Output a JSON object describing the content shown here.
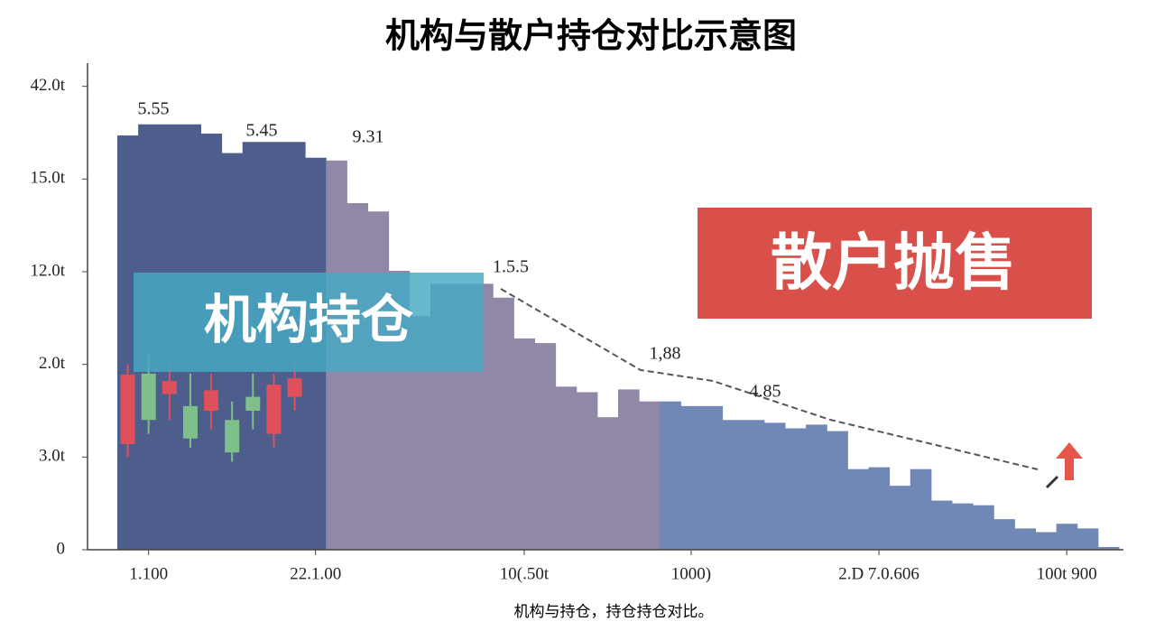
{
  "chart_data": {
    "type": "bar",
    "title": "机构与散户持仓对比示意图",
    "caption": "机构与持仓，持仓持仓对比。",
    "labels": {
      "institution": "机构持仓",
      "retail": "散户抛售"
    },
    "annotations": [
      "5.55",
      "5.45",
      "9.31",
      "1.5.5",
      "1,88",
      "4.85"
    ],
    "categories": [
      null,
      "1.100",
      null,
      null,
      null,
      null,
      null,
      null,
      null,
      "22.1.00",
      null,
      null,
      null,
      null,
      null,
      null,
      null,
      null,
      null,
      "10(.50t",
      null,
      null,
      null,
      null,
      null,
      null,
      null,
      "1000)",
      null,
      null,
      null,
      null,
      null,
      null,
      null,
      null,
      "2.D 7.0.606",
      null,
      null,
      null,
      null,
      null,
      null,
      null,
      null,
      "100t 900",
      null,
      null
    ],
    "series": [
      {
        "color": "#4d5d8c",
        "values": [
          4.47,
          4.59,
          4.59,
          4.59,
          4.49,
          4.28,
          4.4,
          4.4,
          4.4,
          4.23,
          null,
          null,
          null,
          null,
          null,
          null,
          null,
          null,
          null,
          null,
          null,
          null,
          null,
          null,
          null,
          null,
          null,
          null,
          null,
          null,
          null,
          null,
          null,
          null,
          null,
          null,
          null,
          null,
          null,
          null,
          null,
          null,
          null,
          null,
          null,
          null,
          null,
          null
        ]
      },
      {
        "color": "#9088a6",
        "values": [
          null,
          null,
          null,
          null,
          null,
          null,
          null,
          null,
          null,
          null,
          4.2,
          3.74,
          3.65,
          3.01,
          2.52,
          2.87,
          2.87,
          2.87,
          2.72,
          2.28,
          2.23,
          1.76,
          1.7,
          1.43,
          1.73,
          1.6,
          null,
          null,
          null,
          null,
          null,
          null,
          null,
          null,
          null,
          null,
          null,
          null,
          null,
          null,
          null,
          null,
          null,
          null,
          null,
          null,
          null,
          null
        ]
      },
      {
        "color": "#7088b6",
        "values": [
          null,
          null,
          null,
          null,
          null,
          null,
          null,
          null,
          null,
          null,
          null,
          null,
          null,
          null,
          null,
          null,
          null,
          null,
          null,
          null,
          null,
          null,
          null,
          null,
          null,
          null,
          1.6,
          1.55,
          1.55,
          1.4,
          1.4,
          1.37,
          1.31,
          1.35,
          1.28,
          0.87,
          0.89,
          0.69,
          0.87,
          0.53,
          0.5,
          0.48,
          0.33,
          0.23,
          0.19,
          0.28,
          0.23,
          0.03
        ]
      }
    ],
    "candles": [
      {
        "open": 1.89,
        "close": 1.14,
        "high": 2.0,
        "low": 1.0,
        "color": "#e0505a"
      },
      {
        "open": 1.4,
        "close": 1.9,
        "high": 2.1,
        "low": 1.25,
        "color": "#7fc08a"
      },
      {
        "open": 1.82,
        "close": 1.68,
        "high": 2.0,
        "low": 1.4,
        "color": "#e0505a"
      },
      {
        "open": 1.2,
        "close": 1.55,
        "high": 1.9,
        "low": 1.1,
        "color": "#7fc08a"
      },
      {
        "open": 1.72,
        "close": 1.5,
        "high": 1.9,
        "low": 1.3,
        "color": "#e0505a"
      },
      {
        "open": 1.05,
        "close": 1.4,
        "high": 1.6,
        "low": 0.95,
        "color": "#7fc08a"
      },
      {
        "open": 1.5,
        "close": 1.65,
        "high": 1.9,
        "low": 1.3,
        "color": "#7fc08a"
      },
      {
        "open": 1.78,
        "close": 1.25,
        "high": 1.9,
        "low": 1.1,
        "color": "#e0505a"
      },
      {
        "open": 1.85,
        "close": 1.65,
        "high": 2.0,
        "low": 1.5,
        "color": "#e0505a"
      }
    ],
    "ylim": [
      0,
      5.25
    ],
    "yticks": [
      0,
      {
        "value": 1,
        "label": "3.0t"
      },
      {
        "value": 2,
        "label": "2.0t"
      },
      {
        "value": 3,
        "label": "12.0t"
      },
      {
        "value": 4,
        "label": "15.0t"
      },
      {
        "value": 5,
        "label": "42.0t"
      }
    ]
  }
}
